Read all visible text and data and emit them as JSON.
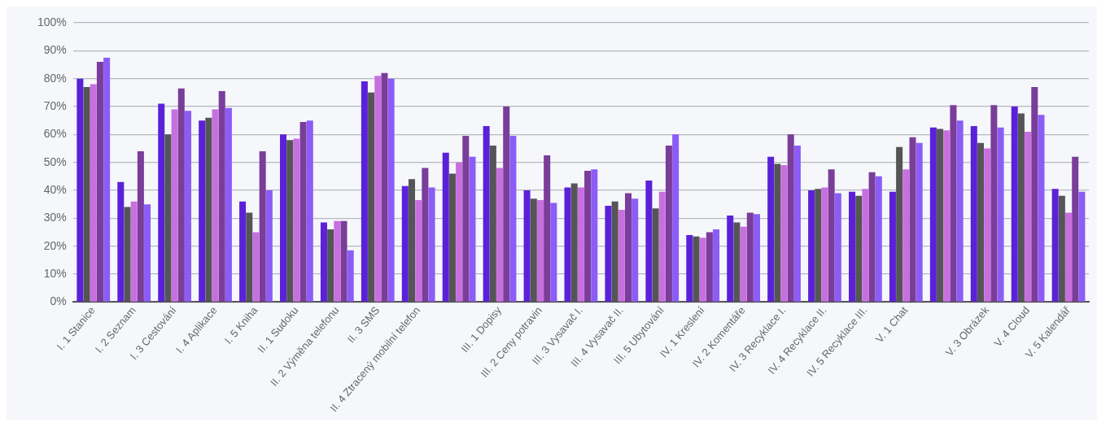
{
  "chart_data": {
    "type": "bar",
    "categories": [
      "I. 1 Stanice",
      "I. 2 Seznam",
      "I. 3 Cestování",
      "I. 4 Aplikace",
      "I. 5 Kniha",
      "II. 1 Sudoku",
      "II. 2 Výměna telefonu",
      "II. 3 SMS",
      "II. 4 Ztracený mobilní telefon",
      null,
      "III. 1 Dopisy",
      "III. 2 Ceny potravin",
      "III. 3 Vysavač I.",
      "III. 4 Vysavač II.",
      "III. 5 Ubytování",
      "IV. 1 Kreslení",
      "IV. 2 Komentáře",
      "IV. 3 Recyklace I.",
      "IV. 4 Recyklace II.",
      "IV. 5 Recyklace III.",
      "V. 1 Chat",
      null,
      "V. 3 Obrázek",
      "V. 4 Cloud",
      "V. 5 Kalendář"
    ],
    "series": [
      {
        "color": "#5b21d9",
        "values": [
          80,
          43,
          71,
          65,
          36,
          60,
          28.5,
          79,
          41.5,
          53.5,
          63,
          40,
          41,
          34.5,
          43.5,
          24,
          31,
          52,
          40,
          39.5,
          39.5,
          62.5,
          63,
          70,
          40.5
        ]
      },
      {
        "color": "#555555",
        "values": [
          77,
          34,
          60,
          66,
          32,
          58,
          26,
          75,
          44,
          46,
          56,
          37,
          42.5,
          36,
          33.5,
          23.5,
          28.5,
          49.5,
          40.5,
          38,
          55.5,
          62,
          57,
          67.5,
          38
        ]
      },
      {
        "color": "#c86fe0",
        "values": [
          78,
          36,
          69,
          69,
          25,
          58.5,
          29,
          81,
          36.5,
          50,
          48,
          36.5,
          41,
          33,
          39.5,
          23,
          27,
          49,
          41,
          40.5,
          47.5,
          61.5,
          55,
          61,
          32
        ]
      },
      {
        "color": "#7a3d99",
        "values": [
          86,
          54,
          76.5,
          75.5,
          54,
          64.5,
          29,
          82,
          48,
          59.5,
          70,
          52.5,
          47,
          39,
          56,
          25,
          32,
          60,
          47.5,
          46.5,
          59,
          70.5,
          70.5,
          77,
          52
        ]
      },
      {
        "color": "#8c5cf7",
        "values": [
          87.5,
          35,
          68.5,
          69.5,
          40,
          65,
          18.5,
          80,
          41,
          52,
          59.5,
          35.5,
          47.5,
          37,
          60,
          26,
          31.5,
          56,
          39,
          45,
          57,
          65,
          62.5,
          67,
          39.5
        ]
      }
    ],
    "ylim": [
      0,
      100
    ],
    "yticks": [
      {
        "value": 0,
        "label": "0%"
      },
      {
        "value": 10,
        "label": "10%"
      },
      {
        "value": 20,
        "label": "20%"
      },
      {
        "value": 30,
        "label": "30%"
      },
      {
        "value": 40,
        "label": "40%"
      },
      {
        "value": 50,
        "label": "50%"
      },
      {
        "value": 60,
        "label": "60%"
      },
      {
        "value": 70,
        "label": "70%"
      },
      {
        "value": 80,
        "label": "80%"
      },
      {
        "value": 90,
        "label": "90%"
      },
      {
        "value": 100,
        "label": "100%"
      }
    ],
    "grid": "y",
    "legend": false
  }
}
